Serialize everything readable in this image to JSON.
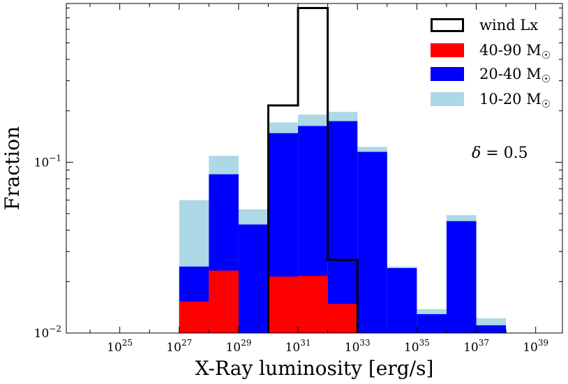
{
  "chart_data": {
    "type": "bar",
    "title": "",
    "xlabel": "X-Ray luminosity [erg/s]",
    "ylabel": "Fraction",
    "xscale": "log10",
    "yscale": "log10",
    "xlim_log10": [
      23.2,
      39.9
    ],
    "ylim": [
      0.01,
      0.85
    ],
    "bin_edges_log10": [
      27,
      28,
      29,
      30,
      31,
      32,
      33,
      34,
      35,
      36,
      37,
      38
    ],
    "x_ticks": [
      {
        "exp": 25,
        "base": "10",
        "sup": "25"
      },
      {
        "exp": 27,
        "base": "10",
        "sup": "27"
      },
      {
        "exp": 29,
        "base": "10",
        "sup": "29"
      },
      {
        "exp": 31,
        "base": "10",
        "sup": "31"
      },
      {
        "exp": 33,
        "base": "10",
        "sup": "33"
      },
      {
        "exp": 35,
        "base": "10",
        "sup": "35"
      },
      {
        "exp": 37,
        "base": "10",
        "sup": "37"
      },
      {
        "exp": 39,
        "base": "10",
        "sup": "39"
      }
    ],
    "y_ticks": [
      {
        "value": 0.01,
        "base": "10",
        "sup": "−2"
      },
      {
        "value": 0.1,
        "base": "10",
        "sup": "−1"
      }
    ],
    "series": [
      {
        "name": "10-20 M☉",
        "color": "#add8e6",
        "values": [
          0.06,
          0.109,
          0.053,
          0.171,
          0.19,
          0.197,
          0.123,
          0.0245,
          0.0138,
          0.049,
          0.0122
        ]
      },
      {
        "name": "20-40 M☉",
        "color": "#0000ff",
        "values": [
          0.0245,
          0.085,
          0.0432,
          0.148,
          0.163,
          0.174,
          0.115,
          0.024,
          0.0129,
          0.0452,
          0.0111
        ]
      },
      {
        "name": "40-90 M☉",
        "color": "#ff0000",
        "values": [
          0.0153,
          0.0232,
          null,
          0.0214,
          0.0216,
          0.0148,
          null,
          null,
          null,
          null,
          null
        ]
      }
    ],
    "outline_series": {
      "name": "wind Lx",
      "color": "#000000",
      "bin_edges_log10": [
        30,
        31,
        32,
        33
      ],
      "values": [
        0.215,
        0.8,
        0.0268
      ]
    },
    "legend": {
      "position": "top-right",
      "entries": [
        {
          "label": "wind Lx",
          "main": "wind Lx",
          "sun": "",
          "style": "outline",
          "color": "#000000"
        },
        {
          "label": "40-90 M☉",
          "main": "40-90 M",
          "sun": "☉",
          "style": "filled",
          "color": "#ff0000"
        },
        {
          "label": "20-40 M☉",
          "main": "20-40 M",
          "sun": "☉",
          "style": "filled",
          "color": "#0000ff"
        },
        {
          "label": "10-20 M☉",
          "main": "10-20 M",
          "sun": "☉",
          "style": "filled",
          "color": "#add8e6"
        }
      ]
    },
    "annotation": {
      "text": "δ = 0.5",
      "symbol": "δ",
      "rest": " = 0.5",
      "position": "right"
    }
  }
}
